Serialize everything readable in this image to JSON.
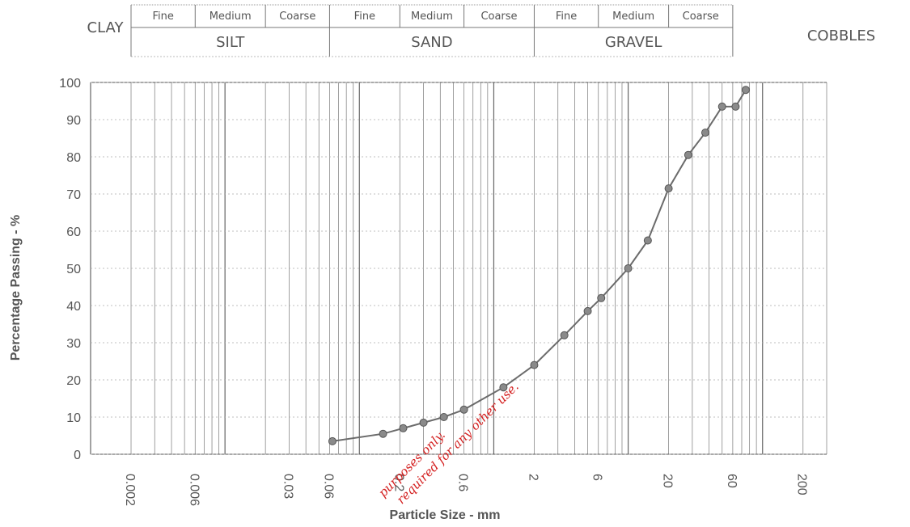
{
  "classification_header": {
    "clay": "CLAY",
    "cobbles": "COBBLES",
    "groups": [
      {
        "name": "SILT",
        "subs": [
          "Fine",
          "Medium",
          "Coarse"
        ]
      },
      {
        "name": "SAND",
        "subs": [
          "Fine",
          "Medium",
          "Coarse"
        ]
      },
      {
        "name": "GRAVEL",
        "subs": [
          "Fine",
          "Medium",
          "Coarse"
        ]
      }
    ]
  },
  "watermark": {
    "line1": "purposes only.",
    "line2": "required for any other use."
  },
  "colors": {
    "series": "#6b6b6b",
    "marker": "#8a8a8a",
    "grid": "#555555",
    "watermark": "#d42020"
  },
  "chart_data": {
    "type": "line",
    "xscale": "log",
    "xlabel": "Particle Size  -  mm",
    "ylabel": "Percentage Passing  -  %",
    "ylim": [
      0,
      100
    ],
    "xlim": [
      0.001,
      300
    ],
    "x_tick_labels": [
      "0.002",
      "0.006",
      "0.03",
      "0.06",
      "0.2",
      "0.6",
      "2",
      "6",
      "20",
      "60",
      "200"
    ],
    "x_tick_values": [
      0.002,
      0.006,
      0.03,
      0.06,
      0.2,
      0.6,
      2,
      6,
      20,
      60,
      200
    ],
    "y_ticks": [
      0,
      10,
      20,
      30,
      40,
      50,
      60,
      70,
      80,
      90,
      100
    ],
    "grid": true,
    "series": [
      {
        "x": [
          0.063,
          0.15,
          0.212,
          0.3,
          0.425,
          0.6,
          1.18,
          2,
          3.35,
          5,
          6.3,
          10,
          14,
          20,
          28,
          37.5,
          50,
          63,
          75
        ],
        "values": [
          3.5,
          5.5,
          7,
          8.5,
          10,
          12,
          18,
          24,
          32,
          38.5,
          42,
          50,
          57.5,
          71.5,
          80.5,
          86.5,
          93.5,
          93.5,
          98
        ]
      }
    ]
  }
}
